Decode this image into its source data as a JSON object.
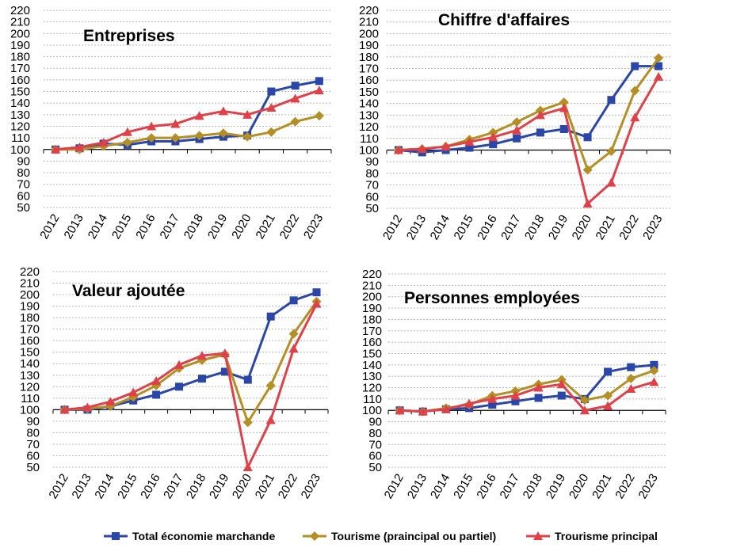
{
  "chart_data": [
    {
      "type": "line",
      "title": "Entreprises",
      "categories": [
        "2012",
        "2013",
        "2014",
        "2015",
        "2016",
        "2017",
        "2018",
        "2019",
        "2020",
        "2021",
        "2022",
        "2023"
      ],
      "yticks": [
        220,
        210,
        200,
        190,
        180,
        170,
        160,
        150,
        140,
        130,
        120,
        110,
        100,
        90,
        80,
        70,
        60,
        50
      ],
      "ylim": [
        50,
        220
      ],
      "series": [
        {
          "name": "Total économie marchande",
          "values": [
            100,
            101,
            105,
            104,
            107,
            107,
            109,
            111,
            112,
            150,
            155,
            159
          ]
        },
        {
          "name": "Tourisme (praincipal ou partiel)",
          "values": [
            100,
            100,
            103,
            106,
            110,
            110,
            112,
            114,
            111,
            115,
            124,
            129
          ]
        },
        {
          "name": "Trourisme principal",
          "values": [
            100,
            102,
            106,
            115,
            120,
            122,
            129,
            133,
            130,
            136,
            144,
            151
          ]
        }
      ]
    },
    {
      "type": "line",
      "title": "Chiffre d'affaires",
      "categories": [
        "2012",
        "2013",
        "2014",
        "2015",
        "2016",
        "2017",
        "2018",
        "2019",
        "2020",
        "2021",
        "2022",
        "2023"
      ],
      "yticks": [
        220,
        210,
        200,
        190,
        180,
        170,
        160,
        150,
        140,
        130,
        120,
        110,
        100,
        90,
        80,
        70,
        60,
        50
      ],
      "ylim": [
        50,
        220
      ],
      "series": [
        {
          "name": "Total économie marchande",
          "values": [
            100,
            98,
            100,
            102,
            105,
            110,
            115,
            118,
            111,
            143,
            172,
            172
          ]
        },
        {
          "name": "Tourisme (praincipal ou partiel)",
          "values": [
            100,
            101,
            103,
            109,
            115,
            124,
            134,
            141,
            83,
            99,
            151,
            179
          ]
        },
        {
          "name": "Trourisme principal",
          "values": [
            100,
            101,
            103,
            107,
            111,
            117,
            130,
            136,
            54,
            72,
            128,
            163
          ]
        }
      ]
    },
    {
      "type": "line",
      "title": "Valeur ajoutée",
      "categories": [
        "2012",
        "2013",
        "2014",
        "2015",
        "2016",
        "2017",
        "2018",
        "2019",
        "2020",
        "2021",
        "2022",
        "2023"
      ],
      "yticks": [
        220,
        210,
        200,
        190,
        180,
        170,
        160,
        150,
        140,
        130,
        120,
        110,
        100,
        90,
        80,
        70,
        60,
        50
      ],
      "ylim": [
        50,
        220
      ],
      "series": [
        {
          "name": "Total économie marchande",
          "values": [
            100,
            100,
            103,
            108,
            113,
            120,
            127,
            133,
            126,
            181,
            195,
            202
          ]
        },
        {
          "name": "Tourisme (praincipal ou partiel)",
          "values": [
            100,
            101,
            103,
            111,
            121,
            136,
            143,
            148,
            89,
            121,
            166,
            194
          ]
        },
        {
          "name": "Trourisme principal",
          "values": [
            100,
            102,
            107,
            115,
            125,
            139,
            147,
            149,
            50,
            91,
            153,
            192
          ]
        }
      ]
    },
    {
      "type": "line",
      "title": "Personnes employées",
      "categories": [
        "2012",
        "2013",
        "2014",
        "2015",
        "2016",
        "2017",
        "2018",
        "2019",
        "2020",
        "2021",
        "2022",
        "2023"
      ],
      "yticks": [
        220,
        210,
        200,
        190,
        180,
        170,
        160,
        150,
        140,
        130,
        120,
        110,
        100,
        90,
        80,
        70,
        60,
        50
      ],
      "ylim": [
        50,
        220
      ],
      "series": [
        {
          "name": "Total économie marchande",
          "values": [
            100,
            99,
            101,
            102,
            105,
            108,
            111,
            113,
            110,
            134,
            138,
            140
          ]
        },
        {
          "name": "Tourisme (praincipal ou partiel)",
          "values": [
            100,
            99,
            102,
            105,
            113,
            117,
            123,
            127,
            109,
            113,
            128,
            135
          ]
        },
        {
          "name": "Trourisme principal",
          "values": [
            100,
            99,
            101,
            106,
            110,
            113,
            120,
            123,
            100,
            104,
            119,
            125
          ]
        }
      ]
    }
  ],
  "legend": {
    "position": "bottom",
    "items": [
      {
        "label": "Total économie marchande",
        "color": "#2a46a8",
        "marker": "square"
      },
      {
        "label": "Tourisme (praincipal ou partiel)",
        "color": "#b38f24",
        "marker": "diamond"
      },
      {
        "label": "Trourisme principal",
        "color": "#e04048",
        "marker": "triangle"
      }
    ]
  }
}
